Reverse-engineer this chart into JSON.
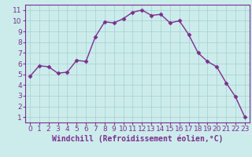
{
  "xlabel": "Windchill (Refroidissement éolien,°C)",
  "x": [
    0,
    1,
    2,
    3,
    4,
    5,
    6,
    7,
    8,
    9,
    10,
    11,
    12,
    13,
    14,
    15,
    16,
    17,
    18,
    19,
    20,
    21,
    22,
    23
  ],
  "y": [
    4.8,
    5.8,
    5.7,
    5.1,
    5.2,
    6.3,
    6.2,
    8.5,
    9.9,
    9.8,
    10.2,
    10.8,
    11.0,
    10.5,
    10.6,
    9.8,
    10.0,
    8.7,
    7.0,
    6.2,
    5.7,
    4.2,
    2.9,
    1.0
  ],
  "line_color": "#7b2f8e",
  "marker_color": "#7b2f8e",
  "bg_color": "#ccecec",
  "grid_color": "#aad4d4",
  "xlim": [
    -0.5,
    23.5
  ],
  "ylim": [
    0.5,
    11.5
  ],
  "xticks": [
    0,
    1,
    2,
    3,
    4,
    5,
    6,
    7,
    8,
    9,
    10,
    11,
    12,
    13,
    14,
    15,
    16,
    17,
    18,
    19,
    20,
    21,
    22,
    23
  ],
  "yticks": [
    1,
    2,
    3,
    4,
    5,
    6,
    7,
    8,
    9,
    10,
    11
  ],
  "tick_fontsize": 6.5,
  "xlabel_fontsize": 7,
  "line_width": 1.0,
  "marker_size": 2.5
}
